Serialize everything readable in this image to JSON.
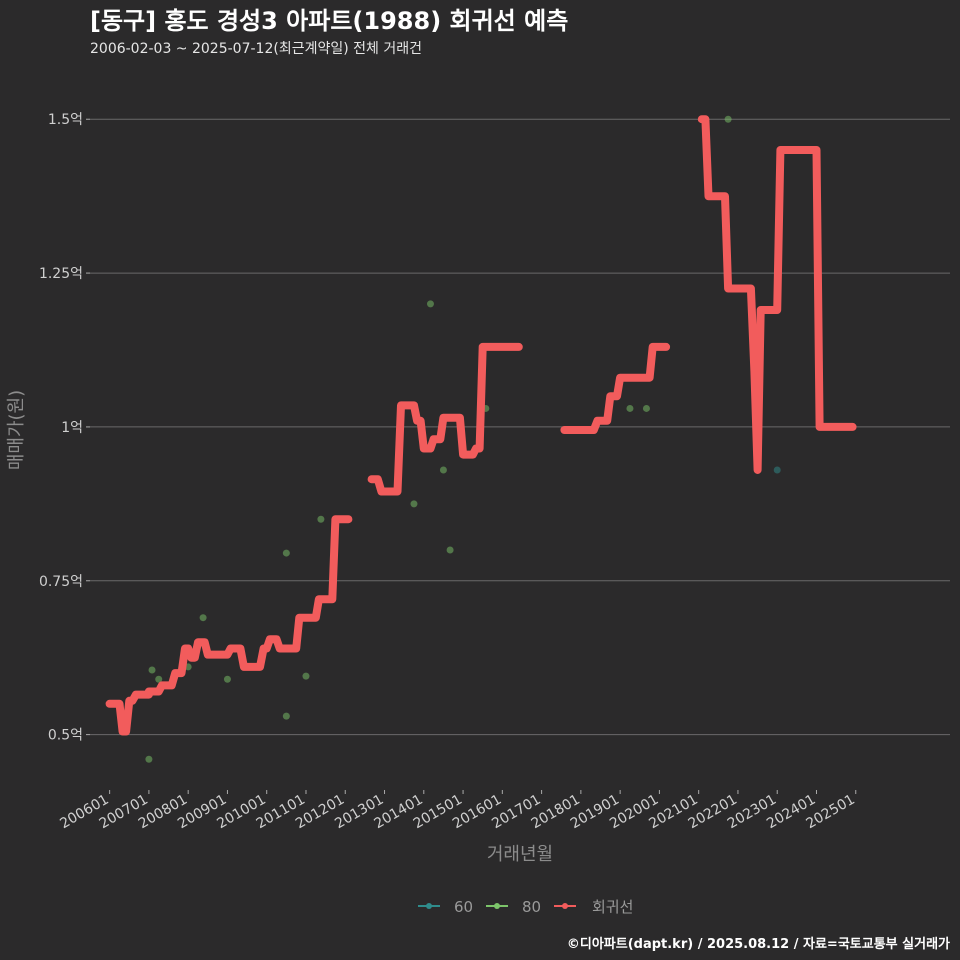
{
  "chart_data": {
    "type": "line",
    "title": "[동구] 홍도 경성3 아파트(1988) 회귀선 예측",
    "subtitle": "2006-02-03 ~ 2025-07-12(최근계약일) 전체 거래건",
    "xlabel": "거래년월",
    "ylabel": "매매가(원)",
    "caption": "©디아파트(dapt.kr) / 2025.08.12 / 자료=국토교통부 실거래가",
    "ylim": [
      0.41,
      1.58
    ],
    "xlim": [
      2005.5,
      2027.4
    ],
    "y_ticks": [
      {
        "value": 0.5,
        "label": "0.5억"
      },
      {
        "value": 0.75,
        "label": "0.75억"
      },
      {
        "value": 1.0,
        "label": "1억"
      },
      {
        "value": 1.25,
        "label": "1.25억"
      },
      {
        "value": 1.5,
        "label": "1.5억"
      }
    ],
    "x_ticks": [
      {
        "value": 2006.0,
        "label": "200601"
      },
      {
        "value": 2007.0,
        "label": "200701"
      },
      {
        "value": 2008.0,
        "label": "200801"
      },
      {
        "value": 2009.0,
        "label": "200901"
      },
      {
        "value": 2010.0,
        "label": "201001"
      },
      {
        "value": 2011.0,
        "label": "201101"
      },
      {
        "value": 2012.0,
        "label": "201201"
      },
      {
        "value": 2013.0,
        "label": "201301"
      },
      {
        "value": 2014.0,
        "label": "201401"
      },
      {
        "value": 2015.0,
        "label": "201501"
      },
      {
        "value": 2016.0,
        "label": "201601"
      },
      {
        "value": 2017.0,
        "label": "201701"
      },
      {
        "value": 2018.0,
        "label": "201801"
      },
      {
        "value": 2019.0,
        "label": "201901"
      },
      {
        "value": 2020.0,
        "label": "202001"
      },
      {
        "value": 2021.0,
        "label": "202101"
      },
      {
        "value": 2022.0,
        "label": "202201"
      },
      {
        "value": 2023.0,
        "label": "202301"
      },
      {
        "value": 2024.0,
        "label": "202401"
      },
      {
        "value": 2025.0,
        "label": "202501"
      }
    ],
    "legend": [
      {
        "name": "60",
        "color": "#2f8c8c"
      },
      {
        "name": "80",
        "color": "#7cc46a"
      },
      {
        "name": "회귀선",
        "color": "#f25c5c"
      }
    ],
    "series": [
      {
        "name": "60",
        "color": "#2f8c8c",
        "points": [
          [
            2023.0,
            0.93
          ]
        ]
      },
      {
        "name": "80",
        "color": "#7cc46a",
        "points": [
          [
            2007.0,
            0.46
          ],
          [
            2007.08,
            0.605
          ],
          [
            2007.25,
            0.59
          ],
          [
            2008.0,
            0.61
          ],
          [
            2008.38,
            0.69
          ],
          [
            2009.0,
            0.59
          ],
          [
            2010.5,
            0.53
          ],
          [
            2010.5,
            0.795
          ],
          [
            2011.0,
            0.595
          ],
          [
            2011.38,
            0.85
          ],
          [
            2013.75,
            0.875
          ],
          [
            2014.17,
            1.2
          ],
          [
            2014.5,
            0.93
          ],
          [
            2014.67,
            0.8
          ],
          [
            2015.58,
            1.03
          ],
          [
            2019.25,
            1.03
          ],
          [
            2019.67,
            1.03
          ],
          [
            2021.75,
            1.5
          ]
        ]
      },
      {
        "name": "회귀선",
        "color": "#f25c5c",
        "segments": [
          [
            [
              2006.0,
              0.55
            ],
            [
              2006.25,
              0.55
            ],
            [
              2006.33,
              0.505
            ],
            [
              2006.42,
              0.505
            ],
            [
              2006.5,
              0.555
            ],
            [
              2006.58,
              0.555
            ],
            [
              2006.67,
              0.565
            ],
            [
              2007.0,
              0.565
            ],
            [
              2007.0,
              0.57
            ],
            [
              2007.25,
              0.57
            ],
            [
              2007.33,
              0.58
            ],
            [
              2007.58,
              0.58
            ],
            [
              2007.67,
              0.6
            ],
            [
              2007.83,
              0.6
            ],
            [
              2007.92,
              0.64
            ],
            [
              2008.0,
              0.64
            ],
            [
              2008.08,
              0.625
            ],
            [
              2008.17,
              0.625
            ],
            [
              2008.25,
              0.65
            ],
            [
              2008.42,
              0.65
            ],
            [
              2008.5,
              0.63
            ],
            [
              2009.0,
              0.63
            ],
            [
              2009.08,
              0.64
            ],
            [
              2009.33,
              0.64
            ],
            [
              2009.42,
              0.61
            ],
            [
              2009.83,
              0.61
            ],
            [
              2009.92,
              0.64
            ],
            [
              2010.0,
              0.64
            ],
            [
              2010.08,
              0.655
            ],
            [
              2010.25,
              0.655
            ],
            [
              2010.33,
              0.64
            ],
            [
              2010.75,
              0.64
            ],
            [
              2010.83,
              0.69
            ],
            [
              2011.25,
              0.69
            ],
            [
              2011.33,
              0.72
            ],
            [
              2011.67,
              0.72
            ],
            [
              2011.75,
              0.85
            ],
            [
              2012.08,
              0.85
            ]
          ],
          [
            [
              2012.67,
              0.915
            ],
            [
              2012.83,
              0.915
            ],
            [
              2012.92,
              0.895
            ],
            [
              2013.33,
              0.895
            ],
            [
              2013.42,
              1.035
            ],
            [
              2013.75,
              1.035
            ],
            [
              2013.83,
              1.01
            ],
            [
              2013.92,
              1.01
            ],
            [
              2014.0,
              0.965
            ],
            [
              2014.17,
              0.965
            ],
            [
              2014.25,
              0.98
            ],
            [
              2014.42,
              0.98
            ],
            [
              2014.5,
              1.015
            ],
            [
              2014.92,
              1.015
            ],
            [
              2015.0,
              0.955
            ],
            [
              2015.25,
              0.955
            ],
            [
              2015.33,
              0.965
            ],
            [
              2015.42,
              0.965
            ],
            [
              2015.5,
              1.13
            ],
            [
              2016.42,
              1.13
            ]
          ],
          [
            [
              2017.58,
              0.995
            ],
            [
              2018.33,
              0.995
            ],
            [
              2018.42,
              1.01
            ],
            [
              2018.67,
              1.01
            ],
            [
              2018.75,
              1.05
            ],
            [
              2018.92,
              1.05
            ],
            [
              2019.0,
              1.08
            ],
            [
              2019.75,
              1.08
            ],
            [
              2019.83,
              1.13
            ],
            [
              2020.17,
              1.13
            ]
          ],
          [
            [
              2021.08,
              1.5
            ],
            [
              2021.17,
              1.5
            ],
            [
              2021.25,
              1.375
            ],
            [
              2021.67,
              1.375
            ],
            [
              2021.75,
              1.225
            ],
            [
              2022.33,
              1.225
            ],
            [
              2022.42,
              1.09
            ],
            [
              2022.5,
              0.93
            ],
            [
              2022.58,
              1.19
            ],
            [
              2023.0,
              1.19
            ],
            [
              2023.08,
              1.45
            ],
            [
              2024.0,
              1.45
            ],
            [
              2024.08,
              1.0
            ],
            [
              2024.92,
              1.0
            ]
          ]
        ]
      }
    ]
  }
}
